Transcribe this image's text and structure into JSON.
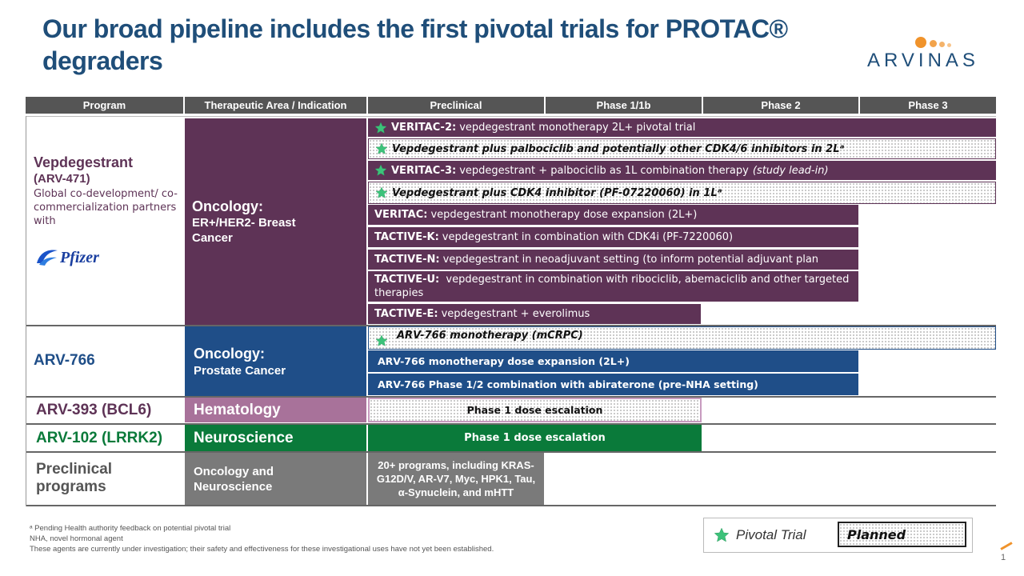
{
  "title": "Our broad pipeline includes the first pivotal trials for PROTAC® degraders",
  "logo": {
    "text": "ARVINAS",
    "color": "#f0932b"
  },
  "headers": [
    "Program",
    "Therapeutic Area / Indication",
    "Preclinical",
    "Phase 1/1b",
    "Phase 2",
    "Phase 3"
  ],
  "vep": {
    "name": "Vepdegestrant",
    "code": "(ARV-471)",
    "partner_text": "Global co-development/ co-commercialization partners with",
    "partner_logo": "Pfizer",
    "area_title": "Oncology:",
    "area_sub": "ER+/HER2- Breast Cancer",
    "trials": [
      {
        "label": "VERITAC-2:",
        "text": "vepdegestrant monotherapy 2L+ pivotal trial",
        "pivotal": true,
        "planned": false
      },
      {
        "label": "",
        "text": "Vepdegestrant plus palbociclib and potentially other CDK4/6 inhibitors in 2Lᵃ",
        "pivotal": true,
        "planned": true
      },
      {
        "label": "VERITAC-3:",
        "text": "vepdegestrant + palbociclib as 1L combination therapy",
        "note": "(study lead-in)",
        "pivotal": true,
        "planned": false
      },
      {
        "label": "",
        "text": "Vepdegestrant plus CDK4 inhibitor (PF-07220060)  in 1Lᵃ",
        "pivotal": true,
        "planned": true
      },
      {
        "label": "VERITAC:",
        "text": "vepdegestrant monotherapy dose expansion (2L+)"
      },
      {
        "label": "TACTIVE-K:",
        "text": "vepdegestrant in combination with CDK4i (PF-7220060)"
      },
      {
        "label": "TACTIVE-N:",
        "text": "vepdegestrant in neoadjuvant setting (to inform potential adjuvant plan"
      },
      {
        "label": "TACTIVE-U:",
        "text": "vepdegestrant in combination with ribociclib, abemaciclib and other targeted therapies"
      },
      {
        "label": "TACTIVE-E:",
        "text": "vepdegestrant + everolimus"
      }
    ]
  },
  "arv766": {
    "name": "ARV-766",
    "area_title": "Oncology:",
    "area_sub": "Prostate Cancer",
    "trials": [
      {
        "text": "ARV-766 monotherapy (mCRPC)",
        "pivotal": true,
        "planned": true
      },
      {
        "text": "ARV-766 monotherapy dose expansion (2L+)"
      },
      {
        "text": "ARV-766 Phase 1/2  combination with abiraterone (pre-NHA setting)"
      }
    ]
  },
  "arv393": {
    "name": "ARV-393 (BCL6)",
    "area": "Hematology",
    "trial": "Phase 1 dose escalation"
  },
  "arv102": {
    "name": "ARV-102 (LRRK2)",
    "area": "Neuroscience",
    "trial": "Phase 1 dose escalation"
  },
  "preclin": {
    "name": "Preclinical programs",
    "area": "Oncology  and Neuroscience",
    "trial": "20+ programs, including KRAS-G12D/V, AR-V7, Myc, HPK1, Tau, α-Synuclein, and mHTT"
  },
  "footnotes": [
    "ᵃ Pending Health authority feedback on potential pivotal trial",
    "NHA, novel hormonal agent",
    "These agents are currently under investigation; their safety and effectiveness for these investigational uses have not yet been established."
  ],
  "legend": {
    "pivotal": "Pivotal Trial",
    "planned": "Planned"
  },
  "page_number": "1",
  "colors": {
    "title": "#1f4e79",
    "purple": "#5e3356",
    "blue": "#1f4e88",
    "pink": "#a8729a",
    "green": "#0a7a3a",
    "gray": "#7a7a7a",
    "accent": "#f0932b"
  }
}
